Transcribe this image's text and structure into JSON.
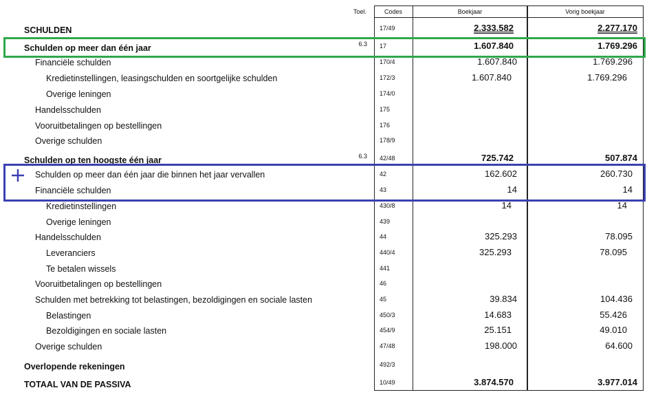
{
  "header": {
    "toel": "Toel.",
    "codes": "Codes",
    "boekjaar": "Boekjaar",
    "vorig": "Vorig boekjaar"
  },
  "highlight_colors": {
    "green": "#2ea84a",
    "blue": "#3b3fb0"
  },
  "plus_icon": "plus-icon",
  "rows": [
    {
      "label": "SCHULDEN",
      "level": 0,
      "bold": true,
      "toel": "",
      "code": "17/49",
      "boekjaar": "2.333.582",
      "vorig": "2.277.170",
      "underline": true
    },
    {
      "label": "Schulden op meer dan één jaar",
      "level": 0,
      "bold": true,
      "toel": "6.3",
      "code": "17",
      "boekjaar": "1.607.840",
      "vorig": "1.769.296"
    },
    {
      "label": "Financiële schulden",
      "level": 1,
      "code": "170/4",
      "boekjaar": "1.607.840",
      "vorig": "1.769.296"
    },
    {
      "label": "Kredietinstellingen, leasingschulden en soortgelijke schulden",
      "level": 2,
      "code": "172/3",
      "boekjaar": "1.607.840",
      "vorig": "1.769.296"
    },
    {
      "label": "Overige leningen",
      "level": 2,
      "code": "174/0",
      "boekjaar": "",
      "vorig": ""
    },
    {
      "label": "Handelsschulden",
      "level": 1,
      "code": "175",
      "boekjaar": "",
      "vorig": ""
    },
    {
      "label": "Vooruitbetalingen op bestellingen",
      "level": 1,
      "code": "176",
      "boekjaar": "",
      "vorig": ""
    },
    {
      "label": "Overige schulden",
      "level": 1,
      "code": "178/9",
      "boekjaar": "",
      "vorig": ""
    },
    {
      "label": "Schulden op ten hoogste één jaar",
      "level": 0,
      "bold": true,
      "toel": "6.3",
      "code": "42/48",
      "boekjaar": "725.742",
      "vorig": "507.874"
    },
    {
      "label": "Schulden op meer dan één jaar die binnen het jaar vervallen",
      "level": 1,
      "code": "42",
      "boekjaar": "162.602",
      "vorig": "260.730"
    },
    {
      "label": "Financiële schulden",
      "level": 1,
      "code": "43",
      "boekjaar": "14",
      "vorig": "14"
    },
    {
      "label": "Kredietinstellingen",
      "level": 2,
      "code": "430/8",
      "boekjaar": "14",
      "vorig": "14"
    },
    {
      "label": "Overige leningen",
      "level": 2,
      "code": "439",
      "boekjaar": "",
      "vorig": ""
    },
    {
      "label": "Handelsschulden",
      "level": 1,
      "code": "44",
      "boekjaar": "325.293",
      "vorig": "78.095"
    },
    {
      "label": "Leveranciers",
      "level": 2,
      "code": "440/4",
      "boekjaar": "325.293",
      "vorig": "78.095"
    },
    {
      "label": "Te betalen wissels",
      "level": 2,
      "code": "441",
      "boekjaar": "",
      "vorig": ""
    },
    {
      "label": "Vooruitbetalingen op bestellingen",
      "level": 1,
      "code": "46",
      "boekjaar": "",
      "vorig": ""
    },
    {
      "label": "Schulden met betrekking tot belastingen, bezoldigingen en sociale lasten",
      "level": 1,
      "code": "45",
      "boekjaar": "39.834",
      "vorig": "104.436"
    },
    {
      "label": "Belastingen",
      "level": 2,
      "code": "450/3",
      "boekjaar": "14.683",
      "vorig": "55.426"
    },
    {
      "label": "Bezoldigingen en sociale lasten",
      "level": 2,
      "code": "454/9",
      "boekjaar": "25.151",
      "vorig": "49.010"
    },
    {
      "label": "Overige schulden",
      "level": 1,
      "code": "47/48",
      "boekjaar": "198.000",
      "vorig": "64.600"
    },
    {
      "label": "Overlopende rekeningen",
      "level": 0,
      "bold": true,
      "code": "492/3",
      "boekjaar": "",
      "vorig": ""
    },
    {
      "label": "TOTAAL VAN DE PASSIVA",
      "level": 0,
      "bold": true,
      "code": "10/49",
      "boekjaar": "3.874.570",
      "vorig": "3.977.014"
    }
  ]
}
